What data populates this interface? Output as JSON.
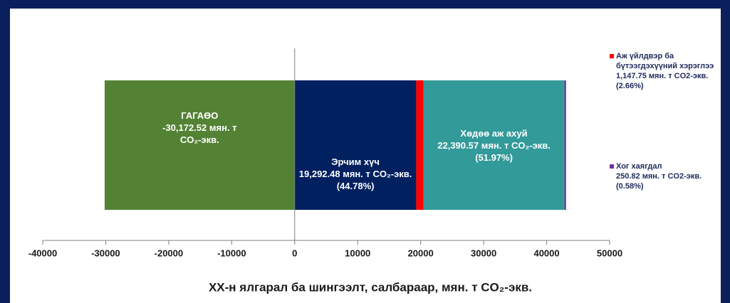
{
  "chart_data": {
    "type": "stacked-bar-horizontal",
    "xlabel": "XX-н ялгарал ба шингээлт, салбараар, мян. т CO₂-экв.",
    "xlim": [
      -40000,
      50000
    ],
    "xticks": [
      -40000,
      -30000,
      -20000,
      -10000,
      0,
      10000,
      20000,
      30000,
      40000,
      50000
    ],
    "series": [
      {
        "name": "ГАГАӨО",
        "color": "#548235",
        "values": [
          -30172.52
        ],
        "value_labels": [
          "-30,172.52"
        ],
        "unit": "мян. т CO₂-экв."
      },
      {
        "name": "Эрчим хүч",
        "color": "#002060",
        "values": [
          19292.48
        ],
        "value_labels": [
          "19,292.48"
        ],
        "unit": "мян. т CO₂-экв.",
        "share": "(44.78%)"
      },
      {
        "name": "Аж үйлдвэр ба бүтээгдэхүүний хэрэглээ",
        "color": "#ff0000",
        "values": [
          1147.75
        ],
        "value_labels": [
          "1,147.75"
        ],
        "unit": "мян. т  CO2-экв.",
        "share": "(2.66%)"
      },
      {
        "name": "Хөдөө аж ахуй",
        "color": "#339a9a",
        "values": [
          22390.57
        ],
        "value_labels": [
          "22,390.57"
        ],
        "unit": "мян. т  CO₂-экв.",
        "share": "(51.97%)"
      },
      {
        "name": "Хог хаягдал",
        "color": "#7030a0",
        "values": [
          250.82
        ],
        "value_labels": [
          "250.82"
        ],
        "unit": "мян. т CO2-экв.",
        "share": "(0.58%)"
      }
    ]
  }
}
